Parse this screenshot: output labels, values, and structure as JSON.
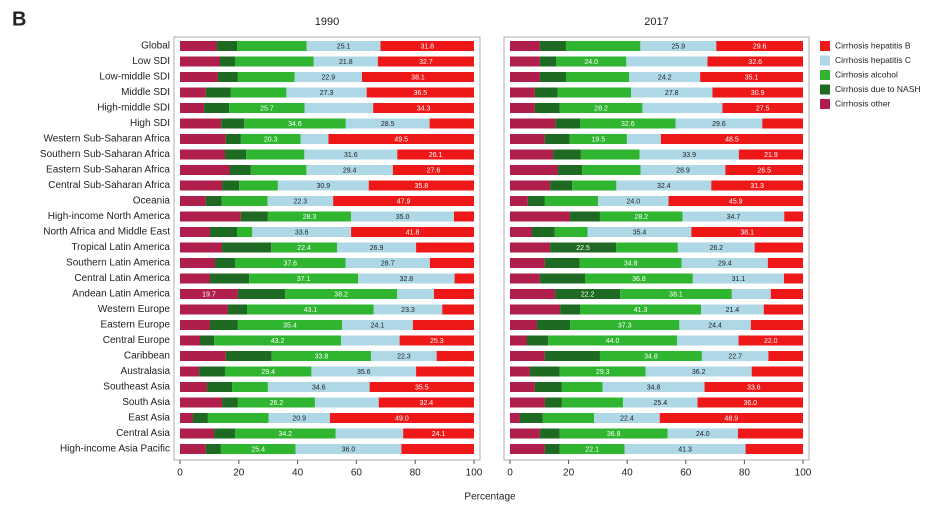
{
  "panel_label": "B",
  "x_label": "Percentage",
  "legend_position": "right",
  "series_styles": [
    {
      "name": "Cirrhosis other",
      "color": "#b01f4b"
    },
    {
      "name": "Cirrhosis due to NASH",
      "color": "#1e6a22"
    },
    {
      "name": "Cirrhosis alcohol",
      "color": "#2fb52f"
    },
    {
      "name": "Cirrhosis hepatitis C",
      "color": "#aed8e6"
    },
    {
      "name": "Cirrhosis hepatitis B",
      "color": "#ef1818"
    }
  ],
  "chart_data": [
    {
      "type": "bar",
      "orientation": "horizontal",
      "stacked": true,
      "title": "1990",
      "categories": [
        "Global",
        "Low SDI",
        "Low-middle SDI",
        "Middle SDI",
        "High-middle SDI",
        "High SDI",
        "Western Sub-Saharan Africa",
        "Southern Sub-Saharan Africa",
        "Eastern Sub-Saharan Africa",
        "Central Sub-Saharan Africa",
        "Oceania",
        "High-income North America",
        "North Africa and Middle East",
        "Tropical Latin America",
        "Southern Latin America",
        "Central Latin America",
        "Andean Latin America",
        "Western Europe",
        "Eastern Europe",
        "Central Europe",
        "Caribbean",
        "Australasia",
        "Southeast Asia",
        "South Asia",
        "East Asia",
        "Central Asia",
        "High-income Asia Pacific"
      ],
      "xlim": [
        0,
        100
      ],
      "xticks": [
        0,
        20,
        40,
        60,
        80,
        100
      ],
      "series": [
        {
          "values": [
            12.6,
            13.6,
            12.9,
            8.8,
            8.2,
            14.0,
            15.6,
            15.3,
            17.0,
            14.3,
            8.8,
            20.7,
            10.2,
            14.3,
            11.9,
            10.2,
            19.7,
            16.3,
            10.2,
            6.8,
            15.6,
            6.5,
            9.2,
            14.3,
            4.4,
            11.6,
            8.8
          ],
          "value_labels": [
            null,
            null,
            null,
            null,
            null,
            null,
            null,
            null,
            null,
            null,
            null,
            null,
            null,
            null,
            null,
            null,
            "19.7",
            null,
            null,
            null,
            null,
            null,
            null,
            null,
            null,
            null,
            null
          ]
        },
        {
          "values": [
            6.8,
            5.1,
            6.8,
            8.5,
            8.5,
            7.8,
            5.1,
            7.2,
            7.1,
            5.8,
            5.4,
            9.2,
            9.2,
            16.7,
            6.8,
            13.3,
            16.0,
            6.5,
            9.5,
            4.8,
            15.6,
            8.8,
            8.5,
            5.4,
            5.1,
            7.1,
            5.1
          ]
        },
        {
          "values": [
            23.7,
            26.8,
            19.3,
            18.9,
            25.7,
            34.6,
            20.3,
            19.8,
            18.9,
            13.2,
            15.6,
            28.3,
            5.2,
            22.4,
            37.6,
            37.1,
            38.2,
            43.1,
            35.4,
            43.2,
            33.8,
            29.4,
            12.2,
            26.2,
            20.6,
            34.2,
            25.4
          ],
          "value_labels": [
            null,
            null,
            null,
            null,
            "25.7",
            "34.6",
            "20.3",
            null,
            null,
            null,
            null,
            "28.3",
            null,
            "22.4",
            "37.6",
            "37.1",
            "38.2",
            "43.1",
            "35.4",
            "43.2",
            "33.8",
            "29.4",
            null,
            "26.2",
            null,
            "34.2",
            "25.4"
          ]
        },
        {
          "values": [
            25.1,
            21.8,
            22.9,
            27.3,
            23.3,
            28.5,
            9.5,
            31.6,
            29.4,
            30.9,
            22.3,
            35.0,
            33.6,
            26.9,
            28.7,
            32.8,
            12.5,
            23.3,
            24.1,
            19.9,
            22.3,
            35.6,
            34.6,
            21.7,
            20.9,
            23.0,
            36.0
          ],
          "value_labels": [
            "25.1",
            "21.8",
            "22.9",
            "27.3",
            null,
            "28.5",
            null,
            "31.6",
            "29.4",
            "30.9",
            "22.3",
            "35.0",
            "33.6",
            "26.9",
            "28.7",
            "32.8",
            null,
            "23.3",
            "24.1",
            null,
            "22.3",
            "35.6",
            "34.6",
            null,
            "20.9",
            null,
            "36.0"
          ]
        },
        {
          "values": [
            31.8,
            32.7,
            38.1,
            36.5,
            34.3,
            15.1,
            49.5,
            26.1,
            27.6,
            35.8,
            47.9,
            6.8,
            41.8,
            19.7,
            15.0,
            6.6,
            13.6,
            10.8,
            20.8,
            25.3,
            12.7,
            19.7,
            35.5,
            32.4,
            49.0,
            24.1,
            24.7
          ],
          "value_labels": [
            "31.8",
            "32.7",
            "38.1",
            "36.5",
            "34.3",
            null,
            "49.5",
            "26.1",
            "27.6",
            "35.8",
            "47.9",
            null,
            "41.8",
            null,
            null,
            null,
            null,
            null,
            null,
            "25.3",
            null,
            null,
            "35.5",
            "32.4",
            "49.0",
            "24.1",
            null
          ]
        }
      ]
    },
    {
      "type": "bar",
      "orientation": "horizontal",
      "stacked": true,
      "title": "2017",
      "xlim": [
        0,
        100
      ],
      "xticks": [
        0,
        20,
        40,
        60,
        80,
        100
      ],
      "series": [
        {
          "values": [
            10.2,
            10.2,
            10.2,
            8.5,
            8.5,
            15.4,
            11.9,
            14.7,
            16.4,
            13.7,
            6.1,
            20.5,
            7.5,
            13.7,
            11.9,
            10.2,
            15.4,
            17.1,
            9.2,
            5.8,
            11.9,
            6.8,
            8.5,
            11.9,
            3.4,
            10.2,
            11.9
          ]
        },
        {
          "values": [
            8.9,
            5.5,
            8.9,
            7.8,
            8.5,
            8.5,
            8.5,
            9.5,
            8.2,
            7.5,
            5.8,
            10.2,
            7.8,
            22.5,
            11.9,
            15.4,
            22.2,
            6.8,
            11.3,
            7.2,
            18.8,
            10.2,
            9.2,
            5.8,
            7.8,
            6.8,
            5.1
          ],
          "value_labels": [
            null,
            null,
            null,
            null,
            null,
            null,
            null,
            null,
            null,
            null,
            null,
            null,
            null,
            "22.5",
            null,
            null,
            "22.2",
            null,
            null,
            null,
            null,
            null,
            null,
            null,
            null,
            null,
            null
          ]
        },
        {
          "values": [
            25.4,
            24.0,
            21.6,
            25.0,
            28.2,
            32.6,
            19.5,
            20.0,
            20.0,
            15.1,
            18.2,
            28.2,
            11.2,
            21.1,
            34.8,
            36.8,
            38.1,
            41.3,
            37.3,
            44.0,
            34.8,
            29.3,
            13.9,
            20.9,
            17.5,
            36.8,
            22.1
          ],
          "value_labels": [
            null,
            "24.0",
            null,
            null,
            "28.2",
            "32.6",
            "19.5",
            null,
            null,
            null,
            null,
            "28.2",
            null,
            null,
            "34.8",
            "36.8",
            "38.1",
            "41.3",
            "37.3",
            "44.0",
            "34.8",
            "29.3",
            null,
            null,
            null,
            "36.8",
            "22.1"
          ]
        },
        {
          "values": [
            25.9,
            27.7,
            24.2,
            27.8,
            27.3,
            29.6,
            11.6,
            33.9,
            28.9,
            32.4,
            24.0,
            34.7,
            35.4,
            26.2,
            29.4,
            31.1,
            13.3,
            21.4,
            24.4,
            21.0,
            22.7,
            36.2,
            34.8,
            25.4,
            22.4,
            24.0,
            41.3
          ],
          "value_labels": [
            "25.9",
            null,
            "24.2",
            "27.8",
            null,
            "29.6",
            null,
            "33.9",
            "28.9",
            "32.4",
            "24.0",
            "34.7",
            "35.4",
            "26.2",
            "29.4",
            "31.1",
            null,
            "21.4",
            "24.4",
            null,
            "22.7",
            "36.2",
            "34.8",
            "25.4",
            "22.4",
            "24.0",
            "41.3"
          ]
        },
        {
          "values": [
            29.6,
            32.6,
            35.1,
            30.9,
            27.5,
            13.9,
            48.5,
            21.9,
            26.5,
            31.3,
            45.9,
            6.4,
            38.1,
            16.5,
            12.0,
            6.5,
            11.0,
            13.4,
            17.8,
            22.0,
            11.8,
            17.5,
            33.6,
            36.0,
            48.9,
            22.2,
            19.6
          ],
          "value_labels": [
            "29.6",
            "32.6",
            "35.1",
            "30.9",
            "27.5",
            null,
            "48.5",
            "21.9",
            "26.5",
            "31.3",
            "45.9",
            null,
            "38.1",
            null,
            null,
            null,
            null,
            null,
            null,
            "22.0",
            null,
            null,
            "33.6",
            "36.0",
            "48.9",
            null,
            null
          ]
        }
      ]
    }
  ]
}
